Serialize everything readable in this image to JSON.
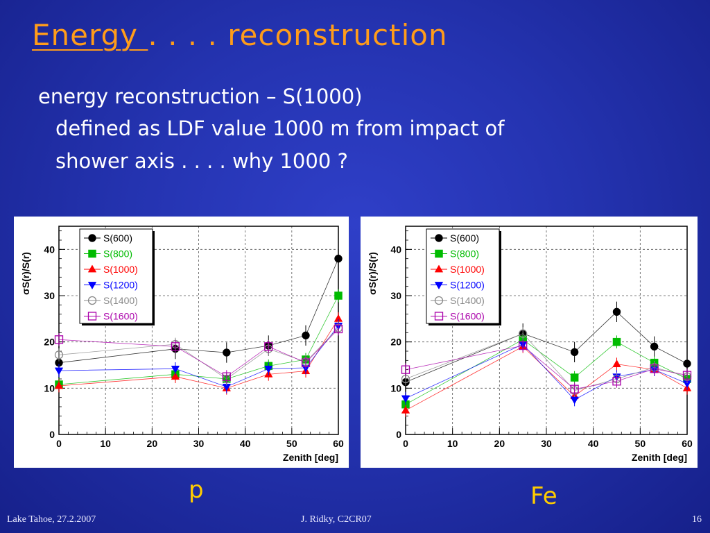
{
  "slide": {
    "title_underlined": "Energy ",
    "title_rest": ". . . . reconstruction",
    "line1": "energy reconstruction – S(1000)",
    "line2": "defined as LDF value 1000 m from impact of",
    "line3": "shower axis . . . . why 1000 ?",
    "label_left": "p",
    "label_right": "Fe",
    "footer_left": "Lake Tahoe, 27.2.2007",
    "footer_center": "J. Ridky, C2CR07",
    "footer_right": "16"
  },
  "chart_data": [
    {
      "type": "scatter",
      "xlabel": "Zenith [deg]",
      "ylabel": "σS(r)/S(r)",
      "xlim": [
        0,
        60
      ],
      "ylim": [
        0,
        45
      ],
      "xticks": [
        0,
        10,
        20,
        30,
        40,
        50,
        60
      ],
      "yticks": [
        0,
        10,
        20,
        30,
        40
      ],
      "grid": true,
      "legend_position": "top-left",
      "x": [
        0,
        25,
        36,
        45,
        53,
        60
      ],
      "series": [
        {
          "name": "S(600)",
          "color": "#000000",
          "marker": "circle-filled",
          "values": [
            15.5,
            18.5,
            17.7,
            19.2,
            21.4,
            38
          ]
        },
        {
          "name": "S(800)",
          "color": "#00bb00",
          "marker": "square-filled",
          "values": [
            10.8,
            13,
            12,
            14.8,
            16.2,
            30
          ]
        },
        {
          "name": "S(1000)",
          "color": "#ff0000",
          "marker": "triangle-up-filled",
          "values": [
            10.5,
            12.5,
            10,
            13,
            13.7,
            25
          ]
        },
        {
          "name": "S(1200)",
          "color": "#0000ff",
          "marker": "triangle-down-filled",
          "values": [
            13.8,
            14.2,
            10.3,
            14.2,
            14.4,
            23.5
          ]
        },
        {
          "name": "S(1400)",
          "color": "#888888",
          "marker": "circle-open",
          "values": [
            17.2,
            19.5,
            12,
            18.5,
            15.7,
            23
          ]
        },
        {
          "name": "S(1600)",
          "color": "#aa00aa",
          "marker": "square-open",
          "values": [
            20.5,
            19,
            12.5,
            19,
            15.5,
            22.8
          ]
        }
      ]
    },
    {
      "type": "scatter",
      "xlabel": "Zenith [deg]",
      "ylabel": "σS(r)/S(r)",
      "xlim": [
        0,
        60
      ],
      "ylim": [
        0,
        45
      ],
      "xticks": [
        0,
        10,
        20,
        30,
        40,
        50,
        60
      ],
      "yticks": [
        0,
        10,
        20,
        30,
        40
      ],
      "grid": true,
      "legend_position": "top-left",
      "x": [
        0,
        25,
        36,
        45,
        53,
        60
      ],
      "series": [
        {
          "name": "S(600)",
          "color": "#000000",
          "marker": "circle-filled",
          "values": [
            11.3,
            21.8,
            17.8,
            26.5,
            19,
            15.3
          ]
        },
        {
          "name": "S(800)",
          "color": "#00bb00",
          "marker": "square-filled",
          "values": [
            6.5,
            20.5,
            12.3,
            20,
            15.5,
            12
          ]
        },
        {
          "name": "S(1000)",
          "color": "#ff0000",
          "marker": "triangle-up-filled",
          "values": [
            5.2,
            19,
            8.3,
            15.2,
            14,
            10
          ]
        },
        {
          "name": "S(1200)",
          "color": "#0000ff",
          "marker": "triangle-down-filled",
          "values": [
            7.8,
            19.5,
            7.5,
            12.5,
            14,
            11
          ]
        },
        {
          "name": "S(1400)",
          "color": "#888888",
          "marker": "circle-open",
          "values": [
            12,
            21.8,
            9.5,
            12,
            14.5,
            12.5
          ]
        },
        {
          "name": "S(1600)",
          "color": "#aa00aa",
          "marker": "square-open",
          "values": [
            14,
            19.2,
            9.8,
            11.5,
            14.2,
            12.8
          ]
        }
      ]
    }
  ]
}
